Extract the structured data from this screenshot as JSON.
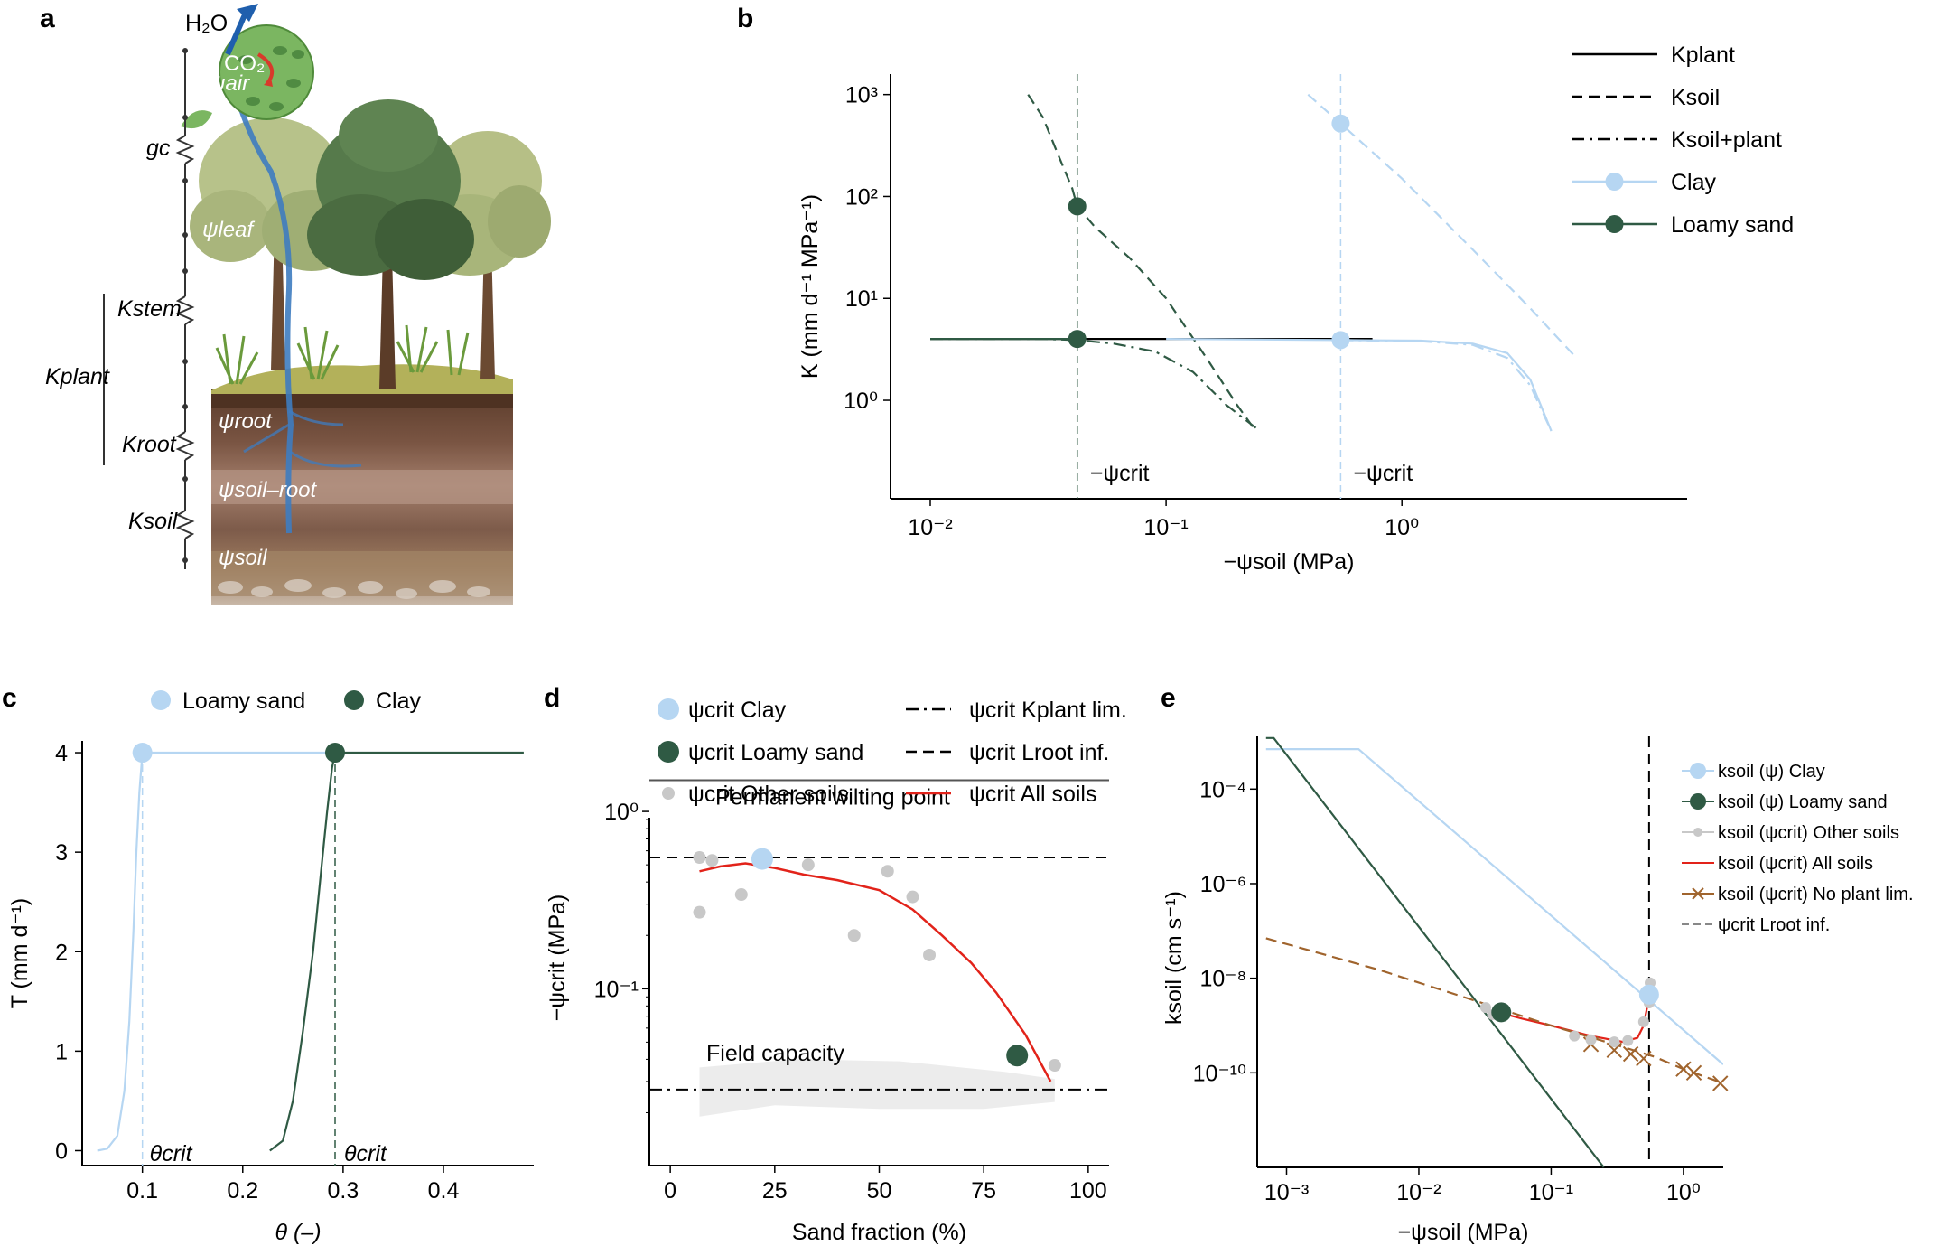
{
  "panel_labels": [
    "a",
    "b",
    "c",
    "d",
    "e"
  ],
  "illustration": {
    "labels": {
      "h2o": "H₂O",
      "co2": "CO₂",
      "psi_air": "ψair",
      "gc": "gc",
      "psi_leaf": "ψleaf",
      "kstem": "Kstem",
      "kplant": "Kplant",
      "psi_root": "ψroot",
      "kroot": "Kroot",
      "psi_soil_root": "ψsoil–root",
      "ksoil": "Ksoil",
      "psi_soil": "ψsoil"
    },
    "colors": {
      "sky_flow": "#3e7cc0",
      "arrow": "#1f5fad",
      "co2_arrow": "#d83a2b",
      "leaf_disk": "#7bb661"
    }
  },
  "chart_data": [
    {
      "panel": "b",
      "type": "line",
      "xscale": "log",
      "yscale": "log",
      "xlim": [
        0.01,
        8
      ],
      "ylim": [
        0.3,
        1100
      ],
      "xticks": [
        "10⁻²",
        "10⁻¹",
        "10⁰"
      ],
      "yticks": [
        "10⁰",
        "10¹",
        "10²",
        "10³"
      ],
      "xlabel": "−ψsoil (MPa)",
      "ylabel": "K (mm d⁻¹ MPa⁻¹)",
      "legend": [
        {
          "label": "Kplant",
          "style": "solid"
        },
        {
          "label": "Ksoil",
          "style": "dashed"
        },
        {
          "label": "Ksoil+plant",
          "style": "dashdot"
        },
        {
          "label": "Clay",
          "color": "#b6d6f2"
        },
        {
          "label": "Loamy sand",
          "color": "#2f5a44"
        }
      ],
      "annotations": [
        "−ψcrit",
        "−ψcrit"
      ],
      "series": [
        {
          "name": "Kplant",
          "style": "solid",
          "color": "#000000",
          "x": [
            0.01,
            0.75
          ],
          "y": [
            4.0,
            4.0
          ]
        },
        {
          "name": "Loamy sand Ksoil",
          "style": "dashed",
          "color": "#2f5a44",
          "x": [
            0.026,
            0.03,
            0.035,
            0.04,
            0.042,
            0.05,
            0.07,
            0.1,
            0.15,
            0.2,
            0.24
          ],
          "y": [
            1000,
            600,
            250,
            120,
            80,
            50,
            25,
            10,
            2.5,
            0.9,
            0.5
          ]
        },
        {
          "name": "Loamy sand Ksoil+plant",
          "style": "dashdot",
          "color": "#2f5a44",
          "x": [
            0.01,
            0.03,
            0.042,
            0.06,
            0.09,
            0.13,
            0.18,
            0.25
          ],
          "y": [
            4.0,
            4.0,
            3.9,
            3.6,
            3.0,
            1.9,
            0.9,
            0.5
          ]
        },
        {
          "name": "Loamy sand Kplant",
          "style": "solid",
          "color": "#2f5a44",
          "x": [
            0.01,
            0.042
          ],
          "y": [
            4.0,
            4.0
          ]
        },
        {
          "name": "Clay Ksoil",
          "style": "dashed",
          "color": "#b6d6f2",
          "x": [
            0.4,
            0.55,
            1.0,
            2.0,
            3.5,
            5.5
          ],
          "y": [
            1000,
            520,
            150,
            30,
            8,
            2.6
          ]
        },
        {
          "name": "Clay Ksoil+plant",
          "style": "dashdot",
          "color": "#b6d6f2",
          "x": [
            0.55,
            1.2,
            2.0,
            2.8,
            3.5,
            4.3
          ],
          "y": [
            3.9,
            3.8,
            3.5,
            2.6,
            1.4,
            0.5
          ]
        },
        {
          "name": "Clay Kplant",
          "style": "solid",
          "color": "#b6d6f2",
          "x": [
            0.1,
            0.55,
            1.2,
            2.0,
            2.8,
            3.5,
            4.3
          ],
          "y": [
            4.0,
            3.9,
            3.85,
            3.6,
            2.9,
            1.6,
            0.5
          ]
        }
      ],
      "points": [
        {
          "series": "Clay",
          "x": 0.55,
          "y": 520,
          "color": "#b6d6f2"
        },
        {
          "series": "Clay",
          "x": 0.55,
          "y": 3.9,
          "color": "#b6d6f2"
        },
        {
          "series": "Loamy sand",
          "x": 0.042,
          "y": 80,
          "color": "#2f5a44"
        },
        {
          "series": "Loamy sand",
          "x": 0.042,
          "y": 4.0,
          "color": "#2f5a44"
        }
      ],
      "vlines": [
        {
          "x": 0.042,
          "color": "#2f5a44"
        },
        {
          "x": 0.55,
          "color": "#b6d6f2"
        }
      ]
    },
    {
      "panel": "c",
      "type": "line",
      "xlim": [
        0.04,
        0.49
      ],
      "ylim": [
        -0.15,
        4.3
      ],
      "xticks": [
        0.1,
        0.2,
        0.3,
        0.4
      ],
      "yticks": [
        0,
        1,
        2,
        3,
        4
      ],
      "xlabel": "θ (–)",
      "ylabel": "T (mm d⁻¹)",
      "legend": [
        {
          "label": "Loamy sand",
          "color": "#b6d6f2"
        },
        {
          "label": "Clay",
          "color": "#2f5a44"
        }
      ],
      "annotations": [
        "θcrit",
        "θcrit"
      ],
      "series": [
        {
          "name": "Loamy sand",
          "color": "#b6d6f2",
          "x": [
            0.055,
            0.065,
            0.075,
            0.082,
            0.087,
            0.091,
            0.094,
            0.097,
            0.1,
            0.2,
            0.29
          ],
          "y": [
            0.0,
            0.02,
            0.15,
            0.6,
            1.3,
            2.2,
            3.0,
            3.6,
            4.0,
            4.0,
            4.0
          ]
        },
        {
          "name": "Clay",
          "color": "#2f5a44",
          "x": [
            0.227,
            0.24,
            0.25,
            0.26,
            0.27,
            0.278,
            0.284,
            0.289,
            0.292,
            0.35,
            0.48
          ],
          "y": [
            0.0,
            0.1,
            0.5,
            1.2,
            2.0,
            2.8,
            3.4,
            3.85,
            4.0,
            4.0,
            4.0
          ]
        }
      ],
      "points": [
        {
          "series": "Loamy sand",
          "x": 0.1,
          "y": 4.0,
          "color": "#b6d6f2"
        },
        {
          "series": "Clay",
          "x": 0.292,
          "y": 4.0,
          "color": "#2f5a44"
        }
      ],
      "vlines": [
        {
          "x": 0.1,
          "color": "#b6d6f2"
        },
        {
          "x": 0.292,
          "color": "#2f5a44"
        }
      ]
    },
    {
      "panel": "d",
      "type": "scatter",
      "yscale": "log",
      "xlim": [
        -5,
        105
      ],
      "ylim": [
        0.012,
        2.5
      ],
      "xticks": [
        0,
        25,
        50,
        75,
        100
      ],
      "yticks": [
        "10⁻¹",
        "10⁰"
      ],
      "xlabel": "Sand fraction (%)",
      "ylabel": "−ψcrit (MPa)",
      "legend": [
        {
          "label": "ψcrit Clay",
          "color": "#b6d6f2"
        },
        {
          "label": "ψcrit Loamy sand",
          "color": "#2f5a44"
        },
        {
          "label": "ψcrit Other soils",
          "color": "#c8c8c8"
        },
        {
          "label": "ψcrit Kplant lim.",
          "style": "dashdot"
        },
        {
          "label": "ψcrit Lroot inf.",
          "style": "dashed"
        },
        {
          "label": "ψcrit All soils",
          "color": "#e2231a"
        }
      ],
      "annotations": [
        "Permanent wilting point",
        "Field capacity"
      ],
      "hlines": [
        {
          "y": 1.5,
          "style": "solid",
          "color": "#555555"
        },
        {
          "y": 0.55,
          "style": "dashed",
          "color": "#000000"
        },
        {
          "y": 0.027,
          "style": "dashdot",
          "color": "#000000"
        }
      ],
      "other_soils": {
        "x": [
          7,
          7,
          10,
          17,
          33,
          44,
          52,
          58,
          62,
          92
        ],
        "y": [
          0.55,
          0.27,
          0.53,
          0.34,
          0.5,
          0.2,
          0.46,
          0.33,
          0.155,
          0.037
        ]
      },
      "clay_point": {
        "x": 22,
        "y": 0.54
      },
      "loamy_sand_point": {
        "x": 83,
        "y": 0.042
      },
      "all_soils_fit": {
        "x": [
          7,
          12,
          18,
          25,
          32,
          40,
          50,
          58,
          65,
          72,
          78,
          85,
          91
        ],
        "y": [
          0.46,
          0.49,
          0.51,
          0.48,
          0.44,
          0.41,
          0.36,
          0.28,
          0.2,
          0.14,
          0.095,
          0.055,
          0.03
        ]
      }
    },
    {
      "panel": "e",
      "type": "line",
      "xscale": "log",
      "yscale": "log",
      "xlim": [
        0.0006,
        2.0
      ],
      "ylim": [
        1e-12,
        0.0013
      ],
      "xticks": [
        "10⁻³",
        "10⁻²",
        "10⁻¹",
        "10⁰"
      ],
      "yticks": [
        "10⁻¹⁰",
        "10⁻⁸",
        "10⁻⁶",
        "10⁻⁴"
      ],
      "xlabel": "−ψsoil (MPa)",
      "ylabel": "ksoil (cm s⁻¹)",
      "legend": [
        {
          "label": "ksoil (ψ) Clay",
          "color": "#b6d6f2"
        },
        {
          "label": "ksoil (ψ) Loamy sand",
          "color": "#2f5a44"
        },
        {
          "label": "ksoil (ψcrit) Other soils",
          "color": "#c8c8c8"
        },
        {
          "label": "ksoil (ψcrit) All soils",
          "color": "#e2231a"
        },
        {
          "label": "ksoil (ψcrit) No plant lim.",
          "color": "#a0642d"
        },
        {
          "label": "ψcrit Lroot inf.",
          "color": "#888888",
          "style": "dashed"
        }
      ],
      "series": [
        {
          "name": "Clay",
          "color": "#b6d6f2",
          "x": [
            0.0007,
            0.0035,
            2.0
          ],
          "y": [
            0.0007,
            0.0007,
            1.5e-10
          ]
        },
        {
          "name": "Loamy sand",
          "color": "#2f5a44",
          "x": [
            0.0007,
            0.0008,
            0.25
          ],
          "y": [
            0.0012,
            0.0012,
            1e-12
          ]
        },
        {
          "name": "All soils",
          "color": "#e2231a",
          "x": [
            0.034,
            0.04,
            0.06,
            0.1,
            0.2,
            0.35,
            0.45,
            0.5,
            0.55
          ],
          "y": [
            2e-09,
            1.9e-09,
            1.4e-09,
            1e-09,
            6e-10,
            4.5e-10,
            5.5e-10,
            1e-09,
            4e-09
          ]
        },
        {
          "name": "No plant lim.",
          "color": "#a0642d",
          "style": "dashed",
          "x": [
            0.0007,
            0.005,
            0.03,
            0.1,
            0.3,
            0.6,
            1.0,
            2.0
          ],
          "y": [
            7e-08,
            1.5e-08,
            3e-09,
            1e-09,
            4e-10,
            2.2e-10,
            1.2e-10,
            6e-11
          ]
        }
      ],
      "cross_points": {
        "x": [
          0.2,
          0.3,
          0.4,
          0.5,
          1.0,
          1.2,
          1.9
        ],
        "y": [
          4e-10,
          3e-10,
          2.5e-10,
          2e-10,
          1.2e-10,
          1e-10,
          6e-11
        ]
      },
      "other_soils": {
        "x": [
          0.032,
          0.036,
          0.15,
          0.2,
          0.3,
          0.38,
          0.5,
          0.55,
          0.56
        ],
        "y": [
          2.4e-09,
          1.7e-09,
          6e-10,
          5e-10,
          4.5e-10,
          4.8e-10,
          1.2e-09,
          3e-09,
          8e-09
        ]
      },
      "clay_point": {
        "x": 0.55,
        "y": 4.5e-09
      },
      "loamy_sand_point": {
        "x": 0.042,
        "y": 1.9e-09
      },
      "vline_x": 0.55
    }
  ]
}
